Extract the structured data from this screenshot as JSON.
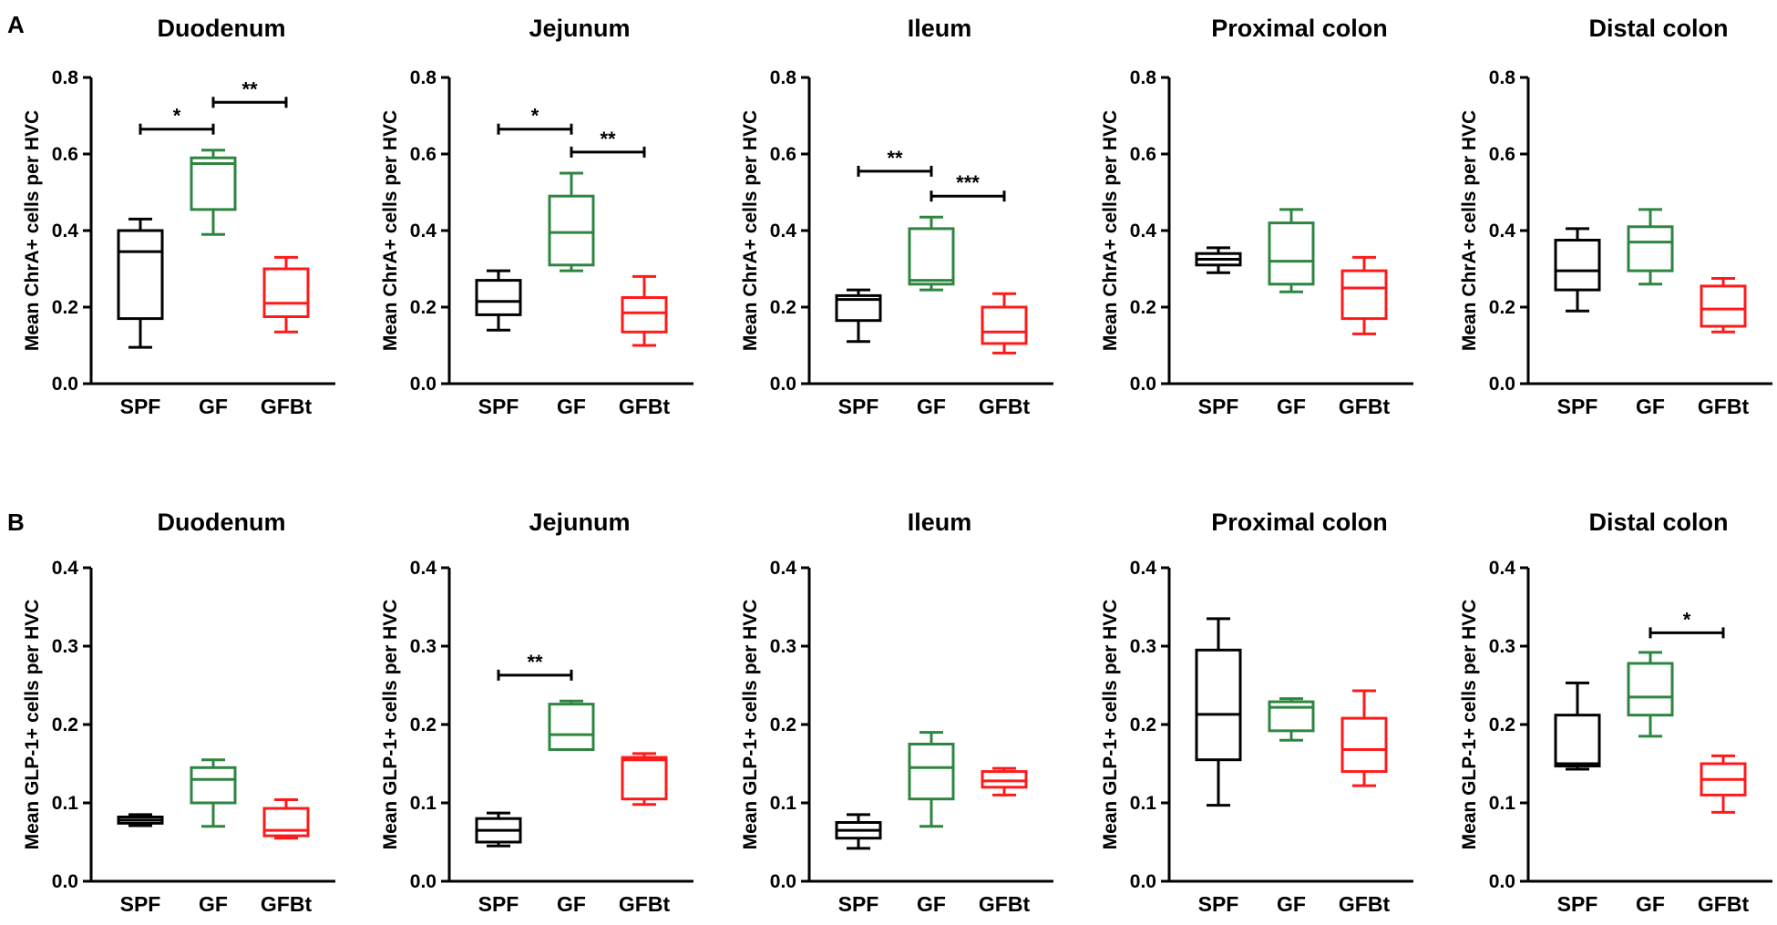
{
  "panel_labels": [
    "A",
    "B"
  ],
  "colors": {
    "SPF": "#000000",
    "GF": "#2e8540",
    "GFBt": "#ff1a1a"
  },
  "chart_data": [
    {
      "type": "box",
      "panel": "A",
      "title": "Duodenum",
      "ylabel": "Mean ChrA+ cells per HVC",
      "ylim": [
        0,
        0.8
      ],
      "yticks": [
        "0.0",
        "0.2",
        "0.4",
        "0.6",
        "0.8"
      ],
      "categories": [
        "SPF",
        "GF",
        "GFBt"
      ],
      "boxes": [
        {
          "group": "SPF",
          "min": 0.095,
          "q1": 0.17,
          "median": 0.345,
          "q3": 0.4,
          "max": 0.43
        },
        {
          "group": "GF",
          "min": 0.39,
          "q1": 0.455,
          "median": 0.575,
          "q3": 0.59,
          "max": 0.61
        },
        {
          "group": "GFBt",
          "min": 0.135,
          "q1": 0.175,
          "median": 0.21,
          "q3": 0.3,
          "max": 0.33
        }
      ],
      "significance": [
        {
          "from": "SPF",
          "to": "GF",
          "label": "*",
          "y": 0.665
        },
        {
          "from": "GF",
          "to": "GFBt",
          "label": "**",
          "y": 0.735
        }
      ]
    },
    {
      "type": "box",
      "panel": "A",
      "title": "Jejunum",
      "ylabel": "Mean ChrA+ cells per HVC",
      "ylim": [
        0,
        0.8
      ],
      "yticks": [
        "0.0",
        "0.2",
        "0.4",
        "0.6",
        "0.8"
      ],
      "categories": [
        "SPF",
        "GF",
        "GFBt"
      ],
      "boxes": [
        {
          "group": "SPF",
          "min": 0.14,
          "q1": 0.18,
          "median": 0.215,
          "q3": 0.27,
          "max": 0.295
        },
        {
          "group": "GF",
          "min": 0.295,
          "q1": 0.31,
          "median": 0.395,
          "q3": 0.49,
          "max": 0.55
        },
        {
          "group": "GFBt",
          "min": 0.1,
          "q1": 0.135,
          "median": 0.185,
          "q3": 0.225,
          "max": 0.28
        }
      ],
      "significance": [
        {
          "from": "SPF",
          "to": "GF",
          "label": "*",
          "y": 0.665
        },
        {
          "from": "GF",
          "to": "GFBt",
          "label": "**",
          "y": 0.605
        }
      ]
    },
    {
      "type": "box",
      "panel": "A",
      "title": "Ileum",
      "ylabel": "Mean ChrA+ cells per HVC",
      "ylim": [
        0,
        0.8
      ],
      "yticks": [
        "0.0",
        "0.2",
        "0.4",
        "0.6",
        "0.8"
      ],
      "categories": [
        "SPF",
        "GF",
        "GFBt"
      ],
      "boxes": [
        {
          "group": "SPF",
          "min": 0.11,
          "q1": 0.165,
          "median": 0.22,
          "q3": 0.23,
          "max": 0.245
        },
        {
          "group": "GF",
          "min": 0.245,
          "q1": 0.26,
          "median": 0.27,
          "q3": 0.405,
          "max": 0.435
        },
        {
          "group": "GFBt",
          "min": 0.08,
          "q1": 0.105,
          "median": 0.135,
          "q3": 0.2,
          "max": 0.235
        }
      ],
      "significance": [
        {
          "from": "SPF",
          "to": "GF",
          "label": "**",
          "y": 0.555
        },
        {
          "from": "GF",
          "to": "GFBt",
          "label": "***",
          "y": 0.49
        }
      ]
    },
    {
      "type": "box",
      "panel": "A",
      "title": "Proximal colon",
      "ylabel": "Mean ChrA+ cells per HVC",
      "ylim": [
        0,
        0.8
      ],
      "yticks": [
        "0.0",
        "0.2",
        "0.4",
        "0.6",
        "0.8"
      ],
      "categories": [
        "SPF",
        "GF",
        "GFBt"
      ],
      "boxes": [
        {
          "group": "SPF",
          "min": 0.29,
          "q1": 0.31,
          "median": 0.325,
          "q3": 0.34,
          "max": 0.355
        },
        {
          "group": "GF",
          "min": 0.24,
          "q1": 0.26,
          "median": 0.32,
          "q3": 0.42,
          "max": 0.455
        },
        {
          "group": "GFBt",
          "min": 0.13,
          "q1": 0.17,
          "median": 0.25,
          "q3": 0.295,
          "max": 0.33
        }
      ],
      "significance": []
    },
    {
      "type": "box",
      "panel": "A",
      "title": "Distal colon",
      "ylabel": "Mean ChrA+ cells per HVC",
      "ylim": [
        0,
        0.8
      ],
      "yticks": [
        "0.0",
        "0.2",
        "0.4",
        "0.6",
        "0.8"
      ],
      "categories": [
        "SPF",
        "GF",
        "GFBt"
      ],
      "boxes": [
        {
          "group": "SPF",
          "min": 0.19,
          "q1": 0.245,
          "median": 0.295,
          "q3": 0.375,
          "max": 0.405
        },
        {
          "group": "GF",
          "min": 0.26,
          "q1": 0.295,
          "median": 0.37,
          "q3": 0.41,
          "max": 0.455
        },
        {
          "group": "GFBt",
          "min": 0.135,
          "q1": 0.15,
          "median": 0.195,
          "q3": 0.255,
          "max": 0.275
        }
      ],
      "significance": []
    },
    {
      "type": "box",
      "panel": "B",
      "title": "Duodenum",
      "ylabel": "Mean GLP-1+ cells per HVC",
      "ylim": [
        0,
        0.4
      ],
      "yticks": [
        "0.0",
        "0.1",
        "0.2",
        "0.3",
        "0.4"
      ],
      "categories": [
        "SPF",
        "GF",
        "GFBt"
      ],
      "boxes": [
        {
          "group": "SPF",
          "min": 0.071,
          "q1": 0.074,
          "median": 0.078,
          "q3": 0.082,
          "max": 0.085
        },
        {
          "group": "GF",
          "min": 0.07,
          "q1": 0.1,
          "median": 0.13,
          "q3": 0.145,
          "max": 0.155
        },
        {
          "group": "GFBt",
          "min": 0.055,
          "q1": 0.058,
          "median": 0.065,
          "q3": 0.093,
          "max": 0.104
        }
      ],
      "significance": []
    },
    {
      "type": "box",
      "panel": "B",
      "title": "Jejunum",
      "ylabel": "Mean GLP-1+ cells per HVC",
      "ylim": [
        0,
        0.4
      ],
      "yticks": [
        "0.0",
        "0.1",
        "0.2",
        "0.3",
        "0.4"
      ],
      "categories": [
        "SPF",
        "GF",
        "GFBt"
      ],
      "boxes": [
        {
          "group": "SPF",
          "min": 0.045,
          "q1": 0.05,
          "median": 0.065,
          "q3": 0.08,
          "max": 0.087
        },
        {
          "group": "GF",
          "min": 0.168,
          "q1": 0.168,
          "median": 0.187,
          "q3": 0.226,
          "max": 0.23
        },
        {
          "group": "GFBt",
          "min": 0.098,
          "q1": 0.105,
          "median": 0.155,
          "q3": 0.158,
          "max": 0.163
        }
      ],
      "significance": [
        {
          "from": "SPF",
          "to": "GF",
          "label": "**",
          "y": 0.263
        }
      ]
    },
    {
      "type": "box",
      "panel": "B",
      "title": "Ileum",
      "ylabel": "Mean GLP-1+ cells per HVC",
      "ylim": [
        0,
        0.4
      ],
      "yticks": [
        "0.0",
        "0.1",
        "0.2",
        "0.3",
        "0.4"
      ],
      "categories": [
        "SPF",
        "GF",
        "GFBt"
      ],
      "boxes": [
        {
          "group": "SPF",
          "min": 0.042,
          "q1": 0.055,
          "median": 0.065,
          "q3": 0.075,
          "max": 0.085
        },
        {
          "group": "GF",
          "min": 0.07,
          "q1": 0.105,
          "median": 0.145,
          "q3": 0.175,
          "max": 0.19
        },
        {
          "group": "GFBt",
          "min": 0.11,
          "q1": 0.12,
          "median": 0.128,
          "q3": 0.14,
          "max": 0.144
        }
      ],
      "significance": []
    },
    {
      "type": "box",
      "panel": "B",
      "title": "Proximal colon",
      "ylabel": "Mean GLP-1+ cells per HVC",
      "ylim": [
        0,
        0.4
      ],
      "yticks": [
        "0.0",
        "0.1",
        "0.2",
        "0.3",
        "0.4"
      ],
      "categories": [
        "SPF",
        "GF",
        "GFBt"
      ],
      "boxes": [
        {
          "group": "SPF",
          "min": 0.097,
          "q1": 0.155,
          "median": 0.213,
          "q3": 0.295,
          "max": 0.335
        },
        {
          "group": "GF",
          "min": 0.18,
          "q1": 0.192,
          "median": 0.222,
          "q3": 0.229,
          "max": 0.233
        },
        {
          "group": "GFBt",
          "min": 0.122,
          "q1": 0.14,
          "median": 0.168,
          "q3": 0.208,
          "max": 0.243
        }
      ],
      "significance": []
    },
    {
      "type": "box",
      "panel": "B",
      "title": "Distal colon",
      "ylabel": "Mean GLP-1+ cells per HVC",
      "ylim": [
        0,
        0.4
      ],
      "yticks": [
        "0.0",
        "0.1",
        "0.2",
        "0.3",
        "0.4"
      ],
      "categories": [
        "SPF",
        "GF",
        "GFBt"
      ],
      "boxes": [
        {
          "group": "SPF",
          "min": 0.143,
          "q1": 0.147,
          "median": 0.15,
          "q3": 0.212,
          "max": 0.253
        },
        {
          "group": "GF",
          "min": 0.185,
          "q1": 0.212,
          "median": 0.235,
          "q3": 0.278,
          "max": 0.292
        },
        {
          "group": "GFBt",
          "min": 0.088,
          "q1": 0.11,
          "median": 0.13,
          "q3": 0.15,
          "max": 0.16
        }
      ],
      "significance": [
        {
          "from": "GF",
          "to": "GFBt",
          "label": "*",
          "y": 0.317
        }
      ]
    }
  ]
}
